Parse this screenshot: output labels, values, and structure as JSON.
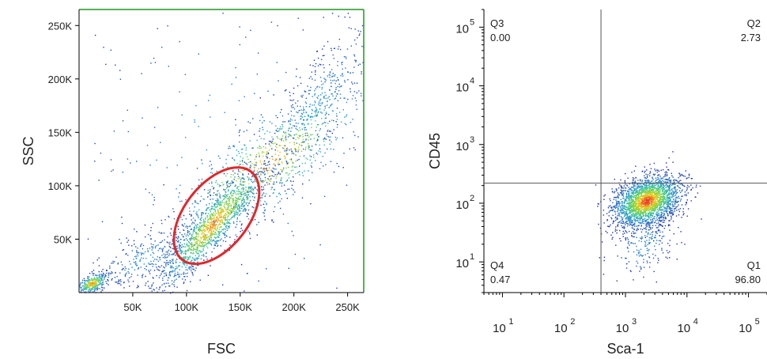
{
  "chart_data": [
    {
      "type": "scatter",
      "xlabel": "FSC",
      "ylabel": "SSC",
      "xlim": [
        0,
        265000
      ],
      "ylim": [
        0,
        265000
      ],
      "x_ticks": [
        {
          "value": 50000,
          "label": "50K"
        },
        {
          "value": 100000,
          "label": "100K"
        },
        {
          "value": 150000,
          "label": "150K"
        },
        {
          "value": 200000,
          "label": "200K"
        },
        {
          "value": 250000,
          "label": "250K"
        }
      ],
      "y_ticks": [
        {
          "value": 50000,
          "label": "50K"
        },
        {
          "value": 100000,
          "label": "100K"
        },
        {
          "value": 150000,
          "label": "150K"
        },
        {
          "value": 200000,
          "label": "200K"
        },
        {
          "value": 250000,
          "label": "250K"
        }
      ],
      "density_clusters": [
        {
          "center": [
            125000,
            65000
          ],
          "spread": [
            26000,
            30000
          ],
          "tilt": 0.9,
          "weight": 0.42
        },
        {
          "center": [
            175000,
            120000
          ],
          "spread": [
            50000,
            40000
          ],
          "tilt": 0.8,
          "weight": 0.2
        },
        {
          "center": [
            220000,
            175000
          ],
          "spread": [
            30000,
            45000
          ],
          "tilt": 0.85,
          "weight": 0.14
        },
        {
          "center": [
            12000,
            9000
          ],
          "spread": [
            7000,
            5000
          ],
          "tilt": 0.5,
          "weight": 0.09
        },
        {
          "center": [
            60000,
            32000
          ],
          "spread": [
            22000,
            14000
          ],
          "tilt": 0.6,
          "weight": 0.08
        },
        {
          "center": [
            135000,
            130000
          ],
          "spread": [
            75000,
            80000
          ],
          "tilt": 0,
          "weight": 0.07
        }
      ],
      "gate": {
        "shape": "ellipse",
        "center": [
          128000,
          72000
        ],
        "rx": 52000,
        "ry": 30000,
        "angle_deg": 52,
        "color": "#e0282c"
      },
      "grid": false
    },
    {
      "type": "scatter",
      "xlabel": "Sca-1",
      "ylabel": "CD45",
      "x_scale": "log",
      "y_scale": "log",
      "xlim": [
        5,
        200000
      ],
      "ylim": [
        3,
        200000
      ],
      "x_ticks": [
        {
          "value": 10,
          "base": "10",
          "exp": "1"
        },
        {
          "value": 100,
          "base": "10",
          "exp": "2"
        },
        {
          "value": 1000,
          "base": "10",
          "exp": "3"
        },
        {
          "value": 10000,
          "base": "10",
          "exp": "4"
        },
        {
          "value": 100000,
          "base": "10",
          "exp": "5"
        }
      ],
      "y_ticks": [
        {
          "value": 10,
          "base": "10",
          "exp": "1"
        },
        {
          "value": 100,
          "base": "10",
          "exp": "2"
        },
        {
          "value": 1000,
          "base": "10",
          "exp": "3"
        },
        {
          "value": 10000,
          "base": "10",
          "exp": "4"
        },
        {
          "value": 100000,
          "base": "10",
          "exp": "5"
        }
      ],
      "quadrant_gates": {
        "x": 400,
        "y": 220
      },
      "quadrants": [
        {
          "name": "Q3",
          "value": "0.00",
          "position": "top-left"
        },
        {
          "name": "Q2",
          "value": "2.73",
          "position": "top-right"
        },
        {
          "name": "Q4",
          "value": "0.47",
          "position": "bottom-left"
        },
        {
          "name": "Q1",
          "value": "96.80",
          "position": "bottom-right"
        }
      ],
      "density_clusters": [
        {
          "center": [
            2200,
            110
          ],
          "spread_decades": [
            0.28,
            0.22
          ],
          "weight": 0.9
        },
        {
          "center": [
            2000,
            20
          ],
          "spread_decades": [
            0.25,
            0.3
          ],
          "weight": 0.08
        }
      ],
      "grid": false
    }
  ]
}
